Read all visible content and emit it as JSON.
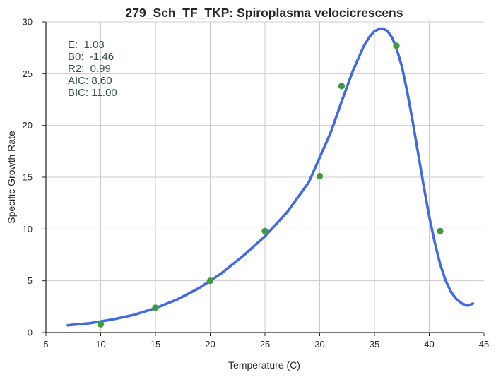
{
  "chart_data": {
    "type": "scatter",
    "title": "279_Sch_TF_TKP: Spiroplasma velocicrescens",
    "xlabel": "Temperature (C)",
    "ylabel": "Specific Growth Rate",
    "xlim": [
      5,
      45
    ],
    "ylim": [
      0,
      30
    ],
    "x_ticks": [
      5,
      10,
      15,
      20,
      25,
      30,
      35,
      40,
      45
    ],
    "y_ticks": [
      0,
      5,
      10,
      15,
      20,
      25,
      30
    ],
    "grid": true,
    "observed": {
      "x": [
        10,
        15,
        20,
        25,
        30,
        32,
        37,
        41
      ],
      "y": [
        0.8,
        2.4,
        5.0,
        9.8,
        15.1,
        23.8,
        27.7,
        9.8
      ],
      "color": "#3d9b3d"
    },
    "fit": {
      "x": [
        7.0,
        9.0,
        11.0,
        13.0,
        15.0,
        17.0,
        19.0,
        21.0,
        23.0,
        25.0,
        27.0,
        29.0,
        31.0,
        32.0,
        33.0,
        34.0,
        34.5,
        35.0,
        35.5,
        35.8,
        36.2,
        36.6,
        37.0,
        37.5,
        38.0,
        38.5,
        39.0,
        39.5,
        40.0,
        40.5,
        41.0,
        41.5,
        42.0,
        42.5,
        43.0,
        43.5,
        44.0
      ],
      "y": [
        0.7,
        0.9,
        1.25,
        1.7,
        2.35,
        3.2,
        4.3,
        5.7,
        7.4,
        9.3,
        11.6,
        14.5,
        19.3,
        22.3,
        25.2,
        27.6,
        28.5,
        29.1,
        29.35,
        29.35,
        29.1,
        28.5,
        27.5,
        25.7,
        23.2,
        20.3,
        17.2,
        14.1,
        11.2,
        8.7,
        6.6,
        5.0,
        3.9,
        3.2,
        2.8,
        2.6,
        2.8
      ],
      "color": "#4169e1"
    },
    "stats": {
      "color": "#2f4f4f",
      "lines": [
        "E:  1.03",
        "B0:  -1.46",
        "R2:  0.99",
        "AIC: 8.60",
        "BIC: 11.00"
      ]
    }
  }
}
